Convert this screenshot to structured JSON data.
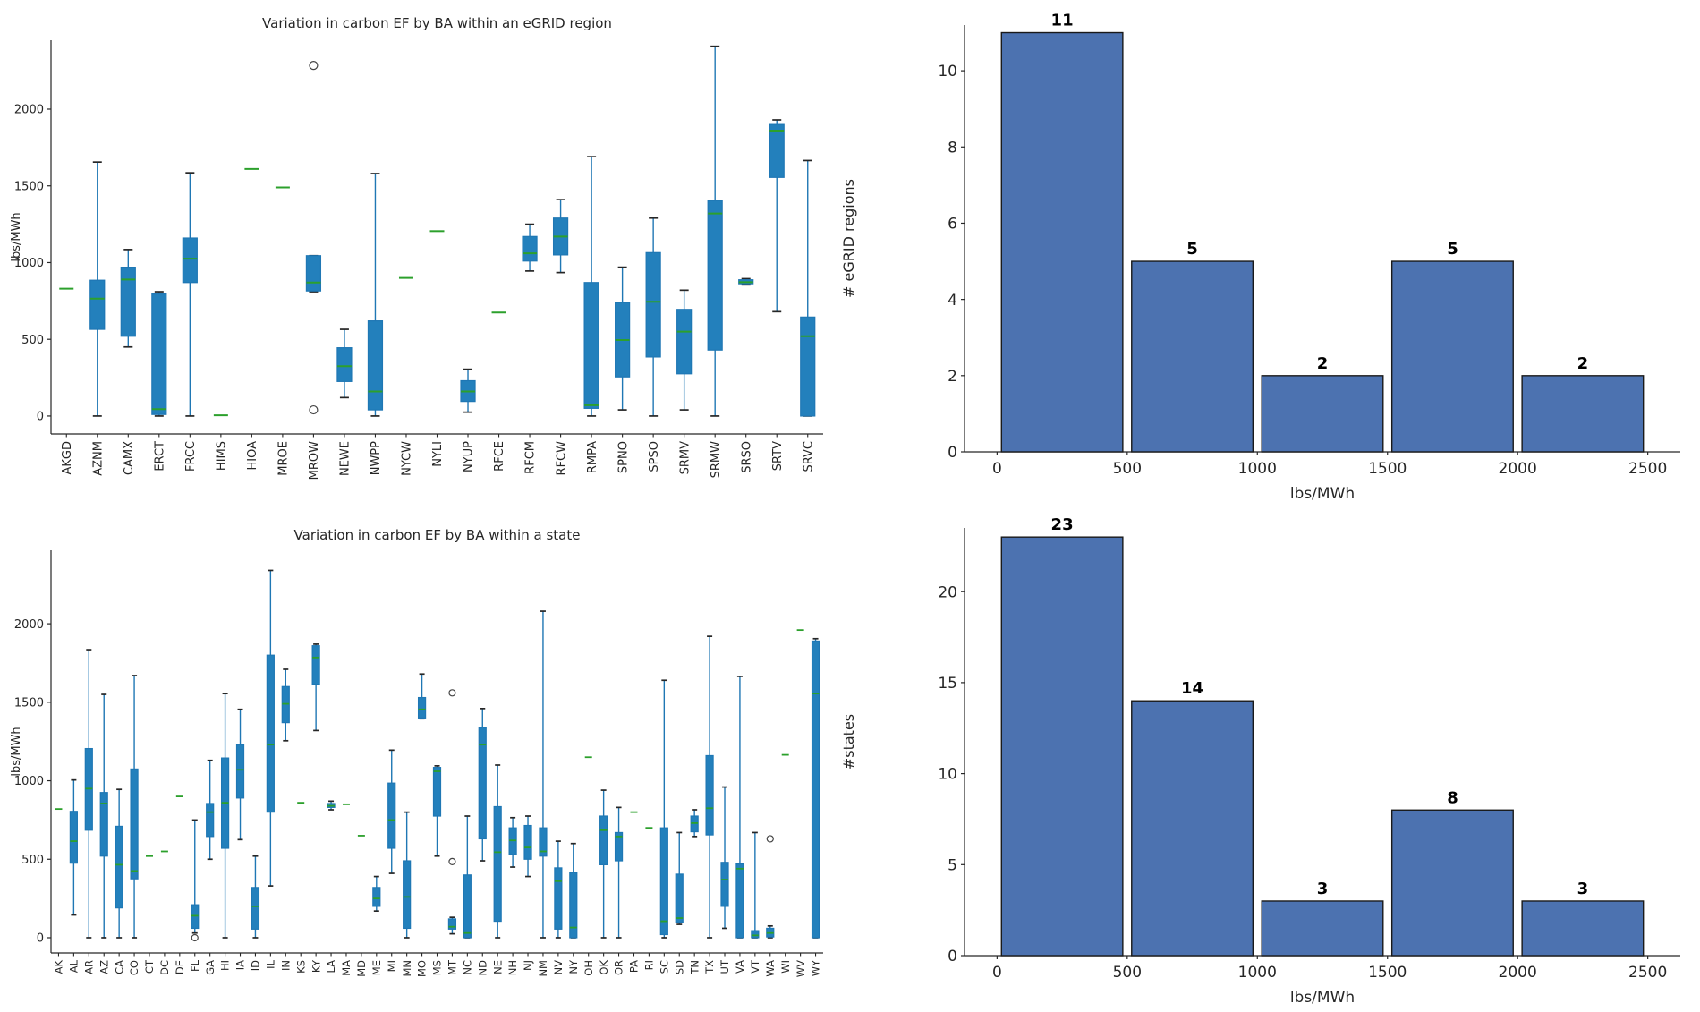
{
  "figure": {
    "background": "#ffffff"
  },
  "colors": {
    "box_fill": "#2380bc",
    "box_edge": "#1f77b4",
    "whisker": "#1f77b4",
    "cap": "#262626",
    "median": "#2ca02c",
    "outlier": "#444444",
    "bar_fill": "#4c72b0",
    "bar_edge": "#1a1a1a",
    "spine": "#262626",
    "tick_text": "#262626",
    "annotation": "#000000"
  },
  "chart_data": [
    {
      "id": "egrid_boxplot",
      "type": "boxplot",
      "title": "Variation in carbon EF by BA within an eGRID region",
      "ylabel": "lbs/MWh",
      "yticks": [
        0,
        500,
        1000,
        1500,
        2000
      ],
      "ylim": [
        -117,
        2449
      ],
      "grid": false,
      "categories": [
        "AKGD",
        "AZNM",
        "CAMX",
        "ERCT",
        "FRCC",
        "HIMS",
        "HIOA",
        "MROE",
        "MROW",
        "NEWE",
        "NWPP",
        "NYCW",
        "NYLI",
        "NYUP",
        "RFCE",
        "RFCM",
        "RFCW",
        "RMPA",
        "SPNO",
        "SPSO",
        "SRMV",
        "SRMW",
        "SRSO",
        "SRTV",
        "SRVC"
      ],
      "boxes": [
        {
          "label": "AKGD",
          "whislo": 830,
          "q1": 830,
          "med": 830,
          "q3": 830,
          "whishi": 830,
          "fliers": []
        },
        {
          "label": "AZNM",
          "whislo": 0,
          "q1": 565,
          "med": 765,
          "q3": 885,
          "whishi": 1655,
          "fliers": []
        },
        {
          "label": "CAMX",
          "whislo": 450,
          "q1": 520,
          "med": 890,
          "q3": 970,
          "whishi": 1085,
          "fliers": []
        },
        {
          "label": "ERCT",
          "whislo": 0,
          "q1": 10,
          "med": 45,
          "q3": 795,
          "whishi": 810,
          "fliers": []
        },
        {
          "label": "FRCC",
          "whislo": 0,
          "q1": 870,
          "med": 1025,
          "q3": 1160,
          "whishi": 1585,
          "fliers": []
        },
        {
          "label": "HIMS",
          "whislo": 5,
          "q1": 5,
          "med": 5,
          "q3": 5,
          "whishi": 5,
          "fliers": []
        },
        {
          "label": "HIOA",
          "whislo": 1610,
          "q1": 1610,
          "med": 1610,
          "q3": 1610,
          "whishi": 1610,
          "fliers": []
        },
        {
          "label": "MROE",
          "whislo": 1490,
          "q1": 1490,
          "med": 1490,
          "q3": 1490,
          "whishi": 1490,
          "fliers": []
        },
        {
          "label": "MROW",
          "whislo": 810,
          "q1": 815,
          "med": 870,
          "q3": 1045,
          "whishi": 1045,
          "fliers": [
            2285,
            40
          ]
        },
        {
          "label": "NEWE",
          "whislo": 120,
          "q1": 225,
          "med": 325,
          "q3": 445,
          "whishi": 565,
          "fliers": []
        },
        {
          "label": "NWPP",
          "whislo": 0,
          "q1": 40,
          "med": 160,
          "q3": 620,
          "whishi": 1580,
          "fliers": []
        },
        {
          "label": "NYCW",
          "whislo": 900,
          "q1": 900,
          "med": 900,
          "q3": 900,
          "whishi": 900,
          "fliers": []
        },
        {
          "label": "NYLI",
          "whislo": 1205,
          "q1": 1205,
          "med": 1205,
          "q3": 1205,
          "whishi": 1205,
          "fliers": []
        },
        {
          "label": "NYUP",
          "whislo": 25,
          "q1": 95,
          "med": 160,
          "q3": 230,
          "whishi": 305,
          "fliers": []
        },
        {
          "label": "RFCE",
          "whislo": 675,
          "q1": 675,
          "med": 675,
          "q3": 675,
          "whishi": 675,
          "fliers": []
        },
        {
          "label": "RFCM",
          "whislo": 945,
          "q1": 1010,
          "med": 1060,
          "q3": 1170,
          "whishi": 1250,
          "fliers": []
        },
        {
          "label": "RFCW",
          "whislo": 935,
          "q1": 1050,
          "med": 1170,
          "q3": 1290,
          "whishi": 1410,
          "fliers": []
        },
        {
          "label": "RMPA",
          "whislo": 0,
          "q1": 50,
          "med": 70,
          "q3": 870,
          "whishi": 1690,
          "fliers": []
        },
        {
          "label": "SPNO",
          "whislo": 40,
          "q1": 255,
          "med": 495,
          "q3": 740,
          "whishi": 970,
          "fliers": []
        },
        {
          "label": "SPSO",
          "whislo": 0,
          "q1": 385,
          "med": 745,
          "q3": 1065,
          "whishi": 1290,
          "fliers": []
        },
        {
          "label": "SRMV",
          "whislo": 40,
          "q1": 275,
          "med": 550,
          "q3": 695,
          "whishi": 820,
          "fliers": []
        },
        {
          "label": "SRMW",
          "whislo": 0,
          "q1": 430,
          "med": 1320,
          "q3": 1405,
          "whishi": 2410,
          "fliers": []
        },
        {
          "label": "SRSO",
          "whislo": 855,
          "q1": 862,
          "med": 872,
          "q3": 888,
          "whishi": 895,
          "fliers": []
        },
        {
          "label": "SRTV",
          "whislo": 680,
          "q1": 1555,
          "med": 1860,
          "q3": 1900,
          "whishi": 1930,
          "fliers": []
        },
        {
          "label": "SRVC",
          "whislo": 0,
          "q1": 0,
          "med": 520,
          "q3": 645,
          "whishi": 1665,
          "fliers": []
        }
      ]
    },
    {
      "id": "egrid_hist",
      "type": "bar",
      "title": "",
      "ylabel": "# eGRID regions",
      "xlabel": "lbs/MWh",
      "bin_edges": [
        0,
        500,
        1000,
        1500,
        2000,
        2500
      ],
      "values": [
        11,
        5,
        2,
        5,
        2
      ],
      "bar_labels": [
        "11",
        "5",
        "2",
        "5",
        "2"
      ],
      "yticks": [
        0,
        2,
        4,
        6,
        8,
        10
      ],
      "xticks": [
        0,
        500,
        1000,
        1500,
        2000,
        2500
      ],
      "ylim": [
        0,
        11.2
      ],
      "xlim": [
        -125,
        2625
      ],
      "grid": false,
      "legend": "none"
    },
    {
      "id": "state_boxplot",
      "type": "boxplot",
      "title": "Variation in carbon EF by BA within a state",
      "ylabel": "lbs/MWh",
      "yticks": [
        0,
        500,
        1000,
        1500,
        2000
      ],
      "ylim": [
        -97,
        2468
      ],
      "grid": false,
      "categories": [
        "AK",
        "AL",
        "AR",
        "AZ",
        "CA",
        "CO",
        "CT",
        "DC",
        "DE",
        "FL",
        "GA",
        "HI",
        "IA",
        "ID",
        "IL",
        "IN",
        "KS",
        "KY",
        "LA",
        "MA",
        "MD",
        "ME",
        "MI",
        "MN",
        "MO",
        "MS",
        "MT",
        "NC",
        "ND",
        "NE",
        "NH",
        "NJ",
        "NM",
        "NV",
        "NY",
        "OH",
        "OK",
        "OR",
        "PA",
        "RI",
        "SC",
        "SD",
        "TN",
        "TX",
        "UT",
        "VA",
        "VT",
        "WA",
        "WI",
        "WV",
        "WY"
      ],
      "boxes": [
        {
          "label": "AK",
          "whislo": 820,
          "q1": 820,
          "med": 820,
          "q3": 820,
          "whishi": 820,
          "fliers": []
        },
        {
          "label": "AL",
          "whislo": 145,
          "q1": 475,
          "med": 615,
          "q3": 805,
          "whishi": 1005,
          "fliers": []
        },
        {
          "label": "AR",
          "whislo": 0,
          "q1": 685,
          "med": 950,
          "q3": 1205,
          "whishi": 1835,
          "fliers": []
        },
        {
          "label": "AZ",
          "whislo": 0,
          "q1": 520,
          "med": 855,
          "q3": 925,
          "whishi": 1550,
          "fliers": []
        },
        {
          "label": "CA",
          "whislo": 0,
          "q1": 190,
          "med": 465,
          "q3": 710,
          "whishi": 945,
          "fliers": []
        },
        {
          "label": "CO",
          "whislo": 0,
          "q1": 375,
          "med": 425,
          "q3": 1075,
          "whishi": 1670,
          "fliers": []
        },
        {
          "label": "CT",
          "whislo": 520,
          "q1": 520,
          "med": 520,
          "q3": 520,
          "whishi": 520,
          "fliers": []
        },
        {
          "label": "DC",
          "whislo": 550,
          "q1": 550,
          "med": 550,
          "q3": 550,
          "whishi": 550,
          "fliers": []
        },
        {
          "label": "DE",
          "whislo": 900,
          "q1": 900,
          "med": 900,
          "q3": 900,
          "whishi": 900,
          "fliers": []
        },
        {
          "label": "FL",
          "whislo": 30,
          "q1": 60,
          "med": 140,
          "q3": 210,
          "whishi": 750,
          "fliers": [
            0
          ]
        },
        {
          "label": "GA",
          "whislo": 500,
          "q1": 645,
          "med": 800,
          "q3": 855,
          "whishi": 1130,
          "fliers": []
        },
        {
          "label": "HI",
          "whislo": 0,
          "q1": 570,
          "med": 860,
          "q3": 1145,
          "whishi": 1555,
          "fliers": []
        },
        {
          "label": "IA",
          "whislo": 625,
          "q1": 890,
          "med": 1070,
          "q3": 1230,
          "whishi": 1455,
          "fliers": []
        },
        {
          "label": "ID",
          "whislo": 0,
          "q1": 55,
          "med": 200,
          "q3": 320,
          "whishi": 520,
          "fliers": []
        },
        {
          "label": "IL",
          "whislo": 330,
          "q1": 800,
          "med": 1230,
          "q3": 1800,
          "whishi": 2340,
          "fliers": []
        },
        {
          "label": "IN",
          "whislo": 1255,
          "q1": 1370,
          "med": 1490,
          "q3": 1600,
          "whishi": 1710,
          "fliers": []
        },
        {
          "label": "KS",
          "whislo": 860,
          "q1": 860,
          "med": 860,
          "q3": 860,
          "whishi": 860,
          "fliers": []
        },
        {
          "label": "KY",
          "whislo": 1320,
          "q1": 1615,
          "med": 1785,
          "q3": 1860,
          "whishi": 1870,
          "fliers": []
        },
        {
          "label": "LA",
          "whislo": 815,
          "q1": 830,
          "med": 840,
          "q3": 855,
          "whishi": 870,
          "fliers": []
        },
        {
          "label": "MA",
          "whislo": 850,
          "q1": 850,
          "med": 850,
          "q3": 850,
          "whishi": 850,
          "fliers": []
        },
        {
          "label": "MD",
          "whislo": 650,
          "q1": 650,
          "med": 650,
          "q3": 650,
          "whishi": 650,
          "fliers": []
        },
        {
          "label": "ME",
          "whislo": 170,
          "q1": 200,
          "med": 250,
          "q3": 320,
          "whishi": 390,
          "fliers": []
        },
        {
          "label": "MI",
          "whislo": 410,
          "q1": 570,
          "med": 750,
          "q3": 985,
          "whishi": 1195,
          "fliers": []
        },
        {
          "label": "MN",
          "whislo": 0,
          "q1": 60,
          "med": 260,
          "q3": 490,
          "whishi": 800,
          "fliers": []
        },
        {
          "label": "MO",
          "whislo": 1395,
          "q1": 1400,
          "med": 1455,
          "q3": 1530,
          "whishi": 1680,
          "fliers": []
        },
        {
          "label": "MS",
          "whislo": 520,
          "q1": 775,
          "med": 1060,
          "q3": 1085,
          "whishi": 1095,
          "fliers": []
        },
        {
          "label": "MT",
          "whislo": 25,
          "q1": 55,
          "med": 70,
          "q3": 120,
          "whishi": 130,
          "fliers": [
            1560,
            485
          ]
        },
        {
          "label": "NC",
          "whislo": 0,
          "q1": 0,
          "med": 30,
          "q3": 400,
          "whishi": 775,
          "fliers": []
        },
        {
          "label": "ND",
          "whislo": 490,
          "q1": 630,
          "med": 1230,
          "q3": 1340,
          "whishi": 1460,
          "fliers": []
        },
        {
          "label": "NE",
          "whislo": 0,
          "q1": 105,
          "med": 545,
          "q3": 835,
          "whishi": 1100,
          "fliers": []
        },
        {
          "label": "NH",
          "whislo": 450,
          "q1": 530,
          "med": 620,
          "q3": 700,
          "whishi": 765,
          "fliers": []
        },
        {
          "label": "NJ",
          "whislo": 390,
          "q1": 500,
          "med": 575,
          "q3": 715,
          "whishi": 775,
          "fliers": []
        },
        {
          "label": "NM",
          "whislo": 0,
          "q1": 520,
          "med": 550,
          "q3": 700,
          "whishi": 2080,
          "fliers": []
        },
        {
          "label": "NV",
          "whislo": 0,
          "q1": 55,
          "med": 360,
          "q3": 445,
          "whishi": 615,
          "fliers": []
        },
        {
          "label": "NY",
          "whislo": 0,
          "q1": 0,
          "med": 65,
          "q3": 415,
          "whishi": 600,
          "fliers": []
        },
        {
          "label": "OH",
          "whislo": 1150,
          "q1": 1150,
          "med": 1150,
          "q3": 1150,
          "whishi": 1150,
          "fliers": []
        },
        {
          "label": "OK",
          "whislo": 0,
          "q1": 465,
          "med": 685,
          "q3": 775,
          "whishi": 940,
          "fliers": []
        },
        {
          "label": "OR",
          "whislo": 0,
          "q1": 490,
          "med": 645,
          "q3": 670,
          "whishi": 830,
          "fliers": []
        },
        {
          "label": "PA",
          "whislo": 800,
          "q1": 800,
          "med": 800,
          "q3": 800,
          "whishi": 800,
          "fliers": []
        },
        {
          "label": "RI",
          "whislo": 700,
          "q1": 700,
          "med": 700,
          "q3": 700,
          "whishi": 700,
          "fliers": []
        },
        {
          "label": "SC",
          "whislo": 0,
          "q1": 20,
          "med": 105,
          "q3": 700,
          "whishi": 1640,
          "fliers": []
        },
        {
          "label": "SD",
          "whislo": 85,
          "q1": 100,
          "med": 125,
          "q3": 405,
          "whishi": 670,
          "fliers": []
        },
        {
          "label": "TN",
          "whislo": 645,
          "q1": 675,
          "med": 730,
          "q3": 775,
          "whishi": 815,
          "fliers": []
        },
        {
          "label": "TX",
          "whislo": 0,
          "q1": 655,
          "med": 825,
          "q3": 1160,
          "whishi": 1920,
          "fliers": []
        },
        {
          "label": "UT",
          "whislo": 60,
          "q1": 200,
          "med": 370,
          "q3": 480,
          "whishi": 960,
          "fliers": []
        },
        {
          "label": "VA",
          "whislo": 0,
          "q1": 0,
          "med": 440,
          "q3": 470,
          "whishi": 1665,
          "fliers": []
        },
        {
          "label": "VT",
          "whislo": 0,
          "q1": 0,
          "med": 15,
          "q3": 45,
          "whishi": 670,
          "fliers": []
        },
        {
          "label": "WA",
          "whislo": 0,
          "q1": 5,
          "med": 30,
          "q3": 60,
          "whishi": 75,
          "fliers": [
            630
          ]
        },
        {
          "label": "WI",
          "whislo": 1165,
          "q1": 1165,
          "med": 1165,
          "q3": 1165,
          "whishi": 1165,
          "fliers": []
        },
        {
          "label": "WV",
          "whislo": 1960,
          "q1": 1960,
          "med": 1960,
          "q3": 1960,
          "whishi": 1960,
          "fliers": []
        },
        {
          "label": "WY",
          "whislo": 0,
          "q1": 0,
          "med": 1555,
          "q3": 1890,
          "whishi": 1905,
          "fliers": []
        }
      ]
    },
    {
      "id": "state_hist",
      "type": "bar",
      "title": "",
      "ylabel": "#states",
      "xlabel": "lbs/MWh",
      "bin_edges": [
        0,
        500,
        1000,
        1500,
        2000,
        2500
      ],
      "values": [
        23,
        14,
        3,
        8,
        3
      ],
      "bar_labels": [
        "23",
        "14",
        "3",
        "8",
        "3"
      ],
      "yticks": [
        0,
        5,
        10,
        15,
        20
      ],
      "xticks": [
        0,
        500,
        1000,
        1500,
        2000,
        2500
      ],
      "ylim": [
        0,
        23.5
      ],
      "xlim": [
        -125,
        2625
      ],
      "grid": false,
      "legend": "none"
    }
  ]
}
